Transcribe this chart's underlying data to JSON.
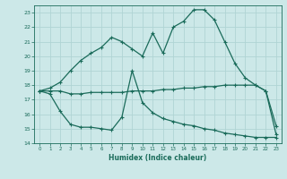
{
  "xlabel": "Humidex (Indice chaleur)",
  "xlim": [
    -0.5,
    23.5
  ],
  "ylim": [
    14,
    23.5
  ],
  "yticks": [
    14,
    15,
    16,
    17,
    18,
    19,
    20,
    21,
    22,
    23
  ],
  "xticks": [
    0,
    1,
    2,
    3,
    4,
    5,
    6,
    7,
    8,
    9,
    10,
    11,
    12,
    13,
    14,
    15,
    16,
    17,
    18,
    19,
    20,
    21,
    22,
    23
  ],
  "bg_color": "#cce8e8",
  "grid_color": "#b0d4d4",
  "line_color": "#1a6b5a",
  "line1_x": [
    0,
    1,
    2,
    3,
    4,
    5,
    6,
    7,
    8,
    9,
    10,
    11,
    12,
    13,
    14,
    15,
    16,
    17,
    18,
    19,
    20,
    21,
    22,
    23
  ],
  "line1_y": [
    17.6,
    17.8,
    18.2,
    19.0,
    19.7,
    20.2,
    20.6,
    21.3,
    21.0,
    20.5,
    20.0,
    21.6,
    20.2,
    22.0,
    22.4,
    23.2,
    23.2,
    22.5,
    21.0,
    19.5,
    18.5,
    18.0,
    17.6,
    15.2
  ],
  "line2_x": [
    0,
    1,
    2,
    3,
    4,
    5,
    6,
    7,
    8,
    9,
    10,
    11,
    12,
    13,
    14,
    15,
    16,
    17,
    18,
    19,
    20,
    21,
    22,
    23
  ],
  "line2_y": [
    17.6,
    17.6,
    17.6,
    17.4,
    17.4,
    17.5,
    17.5,
    17.5,
    17.5,
    17.6,
    17.6,
    17.6,
    17.7,
    17.7,
    17.8,
    17.8,
    17.9,
    17.9,
    18.0,
    18.0,
    18.0,
    18.0,
    17.6,
    14.6
  ],
  "line3_x": [
    0,
    1,
    2,
    3,
    4,
    5,
    6,
    7,
    8,
    9,
    10,
    11,
    12,
    13,
    14,
    15,
    16,
    17,
    18,
    19,
    20,
    21,
    22,
    23
  ],
  "line3_y": [
    17.6,
    17.4,
    16.2,
    15.3,
    15.1,
    15.1,
    15.0,
    14.9,
    15.8,
    19.0,
    16.8,
    16.1,
    15.7,
    15.5,
    15.3,
    15.2,
    15.0,
    14.9,
    14.7,
    14.6,
    14.5,
    14.4,
    14.4,
    14.4
  ]
}
